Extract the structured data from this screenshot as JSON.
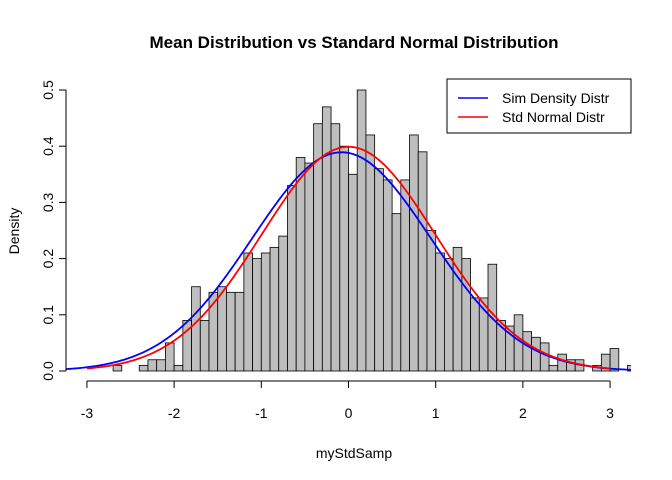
{
  "chart_data": {
    "type": "bar",
    "title": "Mean Distribution vs Standard Normal Distribution",
    "xlabel": "myStdSamp",
    "ylabel": "Density",
    "xlim": [
      -3.24,
      3.24
    ],
    "ylim": [
      0,
      0.5
    ],
    "x_ticks": [
      -3,
      -2,
      -1,
      0,
      1,
      2,
      3
    ],
    "y_ticks": [
      0.0,
      0.1,
      0.2,
      0.3,
      0.4,
      0.5
    ],
    "x_tick_labels": [
      "-3",
      "-2",
      "-1",
      "0",
      "1",
      "2",
      "3"
    ],
    "y_tick_labels": [
      "0.0",
      "0.1",
      "0.2",
      "0.3",
      "0.4",
      "0.5"
    ],
    "bin_width": 0.1,
    "bar_color": "#bebebe",
    "histogram": [
      {
        "x0": -3.3,
        "density": 0.0
      },
      {
        "x0": -3.2,
        "density": 0.0
      },
      {
        "x0": -3.1,
        "density": 0.0
      },
      {
        "x0": -3.0,
        "density": 0.0
      },
      {
        "x0": -2.9,
        "density": 0.0
      },
      {
        "x0": -2.8,
        "density": 0.0
      },
      {
        "x0": -2.7,
        "density": 0.01
      },
      {
        "x0": -2.6,
        "density": 0.0
      },
      {
        "x0": -2.5,
        "density": 0.0
      },
      {
        "x0": -2.4,
        "density": 0.01
      },
      {
        "x0": -2.3,
        "density": 0.02
      },
      {
        "x0": -2.2,
        "density": 0.02
      },
      {
        "x0": -2.1,
        "density": 0.05
      },
      {
        "x0": -2.0,
        "density": 0.01
      },
      {
        "x0": -1.9,
        "density": 0.09
      },
      {
        "x0": -1.8,
        "density": 0.15
      },
      {
        "x0": -1.7,
        "density": 0.09
      },
      {
        "x0": -1.6,
        "density": 0.14
      },
      {
        "x0": -1.5,
        "density": 0.15
      },
      {
        "x0": -1.4,
        "density": 0.14
      },
      {
        "x0": -1.3,
        "density": 0.14
      },
      {
        "x0": -1.2,
        "density": 0.21
      },
      {
        "x0": -1.1,
        "density": 0.2
      },
      {
        "x0": -1.0,
        "density": 0.21
      },
      {
        "x0": -0.9,
        "density": 0.22
      },
      {
        "x0": -0.8,
        "density": 0.24
      },
      {
        "x0": -0.7,
        "density": 0.33
      },
      {
        "x0": -0.6,
        "density": 0.38
      },
      {
        "x0": -0.5,
        "density": 0.37
      },
      {
        "x0": -0.4,
        "density": 0.44
      },
      {
        "x0": -0.3,
        "density": 0.47
      },
      {
        "x0": -0.2,
        "density": 0.44
      },
      {
        "x0": -0.1,
        "density": 0.4
      },
      {
        "x0": 0.0,
        "density": 0.35
      },
      {
        "x0": 0.1,
        "density": 0.5
      },
      {
        "x0": 0.2,
        "density": 0.42
      },
      {
        "x0": 0.3,
        "density": 0.36
      },
      {
        "x0": 0.4,
        "density": 0.34
      },
      {
        "x0": 0.5,
        "density": 0.28
      },
      {
        "x0": 0.6,
        "density": 0.34
      },
      {
        "x0": 0.7,
        "density": 0.42
      },
      {
        "x0": 0.8,
        "density": 0.39
      },
      {
        "x0": 0.9,
        "density": 0.25
      },
      {
        "x0": 1.0,
        "density": 0.21
      },
      {
        "x0": 1.1,
        "density": 0.2
      },
      {
        "x0": 1.2,
        "density": 0.22
      },
      {
        "x0": 1.3,
        "density": 0.2
      },
      {
        "x0": 1.4,
        "density": 0.13
      },
      {
        "x0": 1.5,
        "density": 0.13
      },
      {
        "x0": 1.6,
        "density": 0.19
      },
      {
        "x0": 1.7,
        "density": 0.09
      },
      {
        "x0": 1.8,
        "density": 0.08
      },
      {
        "x0": 1.9,
        "density": 0.1
      },
      {
        "x0": 2.0,
        "density": 0.07
      },
      {
        "x0": 2.1,
        "density": 0.06
      },
      {
        "x0": 2.2,
        "density": 0.05
      },
      {
        "x0": 2.3,
        "density": 0.01
      },
      {
        "x0": 2.4,
        "density": 0.03
      },
      {
        "x0": 2.5,
        "density": 0.02
      },
      {
        "x0": 2.6,
        "density": 0.02
      },
      {
        "x0": 2.7,
        "density": 0.0
      },
      {
        "x0": 2.8,
        "density": 0.01
      },
      {
        "x0": 2.9,
        "density": 0.03
      },
      {
        "x0": 3.0,
        "density": 0.04
      },
      {
        "x0": 3.1,
        "density": 0.0
      },
      {
        "x0": 3.2,
        "density": 0.01
      }
    ],
    "series": [
      {
        "name": "Sim Density Distr",
        "color": "#0000ff",
        "kind": "line",
        "mean": -0.08,
        "sd": 1.025,
        "x_range": [
          -3.3,
          3.3
        ]
      },
      {
        "name": "Std Normal Distr",
        "color": "#ff0000",
        "kind": "line",
        "mean": 0,
        "sd": 1,
        "x_range": [
          -3.0,
          3.0
        ]
      }
    ],
    "legend": {
      "position": "top-right",
      "entries": [
        "Sim Density Distr",
        "Std Normal Distr"
      ]
    }
  }
}
